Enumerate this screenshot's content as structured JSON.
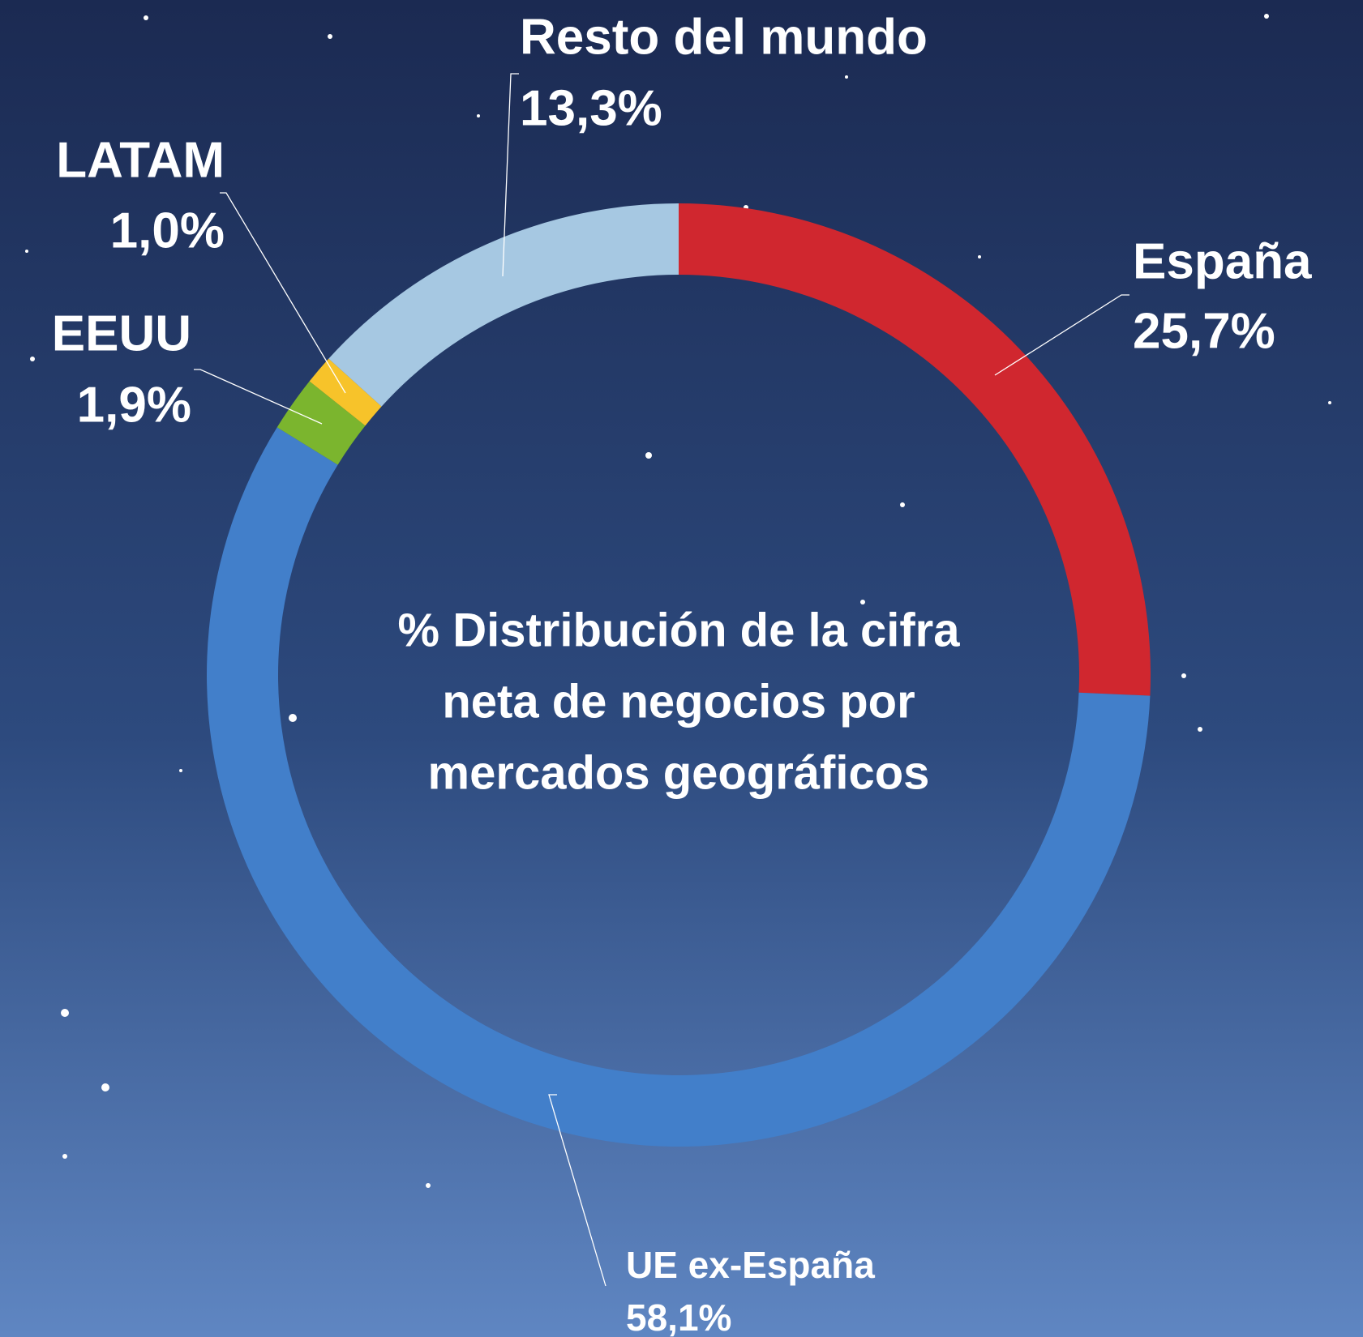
{
  "chart_data": {
    "type": "donut",
    "title": [
      "% Distribución de la cifra",
      "neta de negocios por",
      "mercados geográficos"
    ],
    "categories": [
      "España",
      "UE ex-España",
      "EEUU",
      "LATAM",
      "Resto del mundo"
    ],
    "values": [
      25.7,
      58.1,
      1.9,
      1.0,
      13.3
    ],
    "value_labels": [
      "25,7%",
      "58,1%",
      "1,9%",
      "1,0%",
      "13,3%"
    ],
    "colors": [
      "#d0272f",
      "#427fca",
      "#7bb52e",
      "#f7c32a",
      "#a6c8e2"
    ]
  }
}
